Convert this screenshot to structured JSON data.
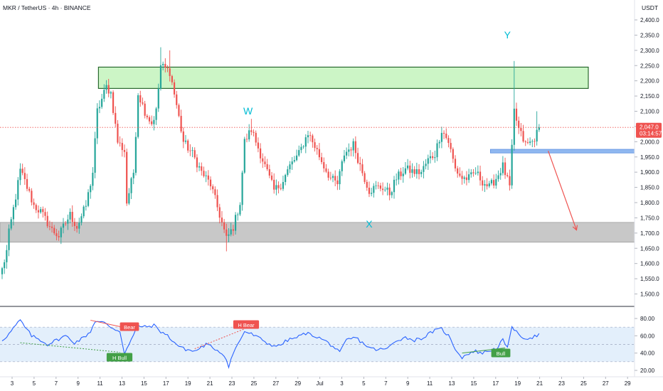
{
  "header": {
    "title": "MKR / TetherUS · 4h · BINANCE"
  },
  "price_axis": {
    "currency": "USDT",
    "ticks": [
      "2,400.0",
      "2,350.0",
      "2,300.0",
      "2,250.0",
      "2,200.0",
      "2,150.0",
      "2,100.0",
      "2,050.0",
      "2,000.0",
      "1,950.0",
      "1,900.0",
      "1,850.0",
      "1,800.0",
      "1,750.0",
      "1,700.0",
      "1,650.0",
      "1,600.0",
      "1,550.0",
      "1,500.0"
    ],
    "last_price": "2,047.0",
    "countdown": "03:14:57"
  },
  "rsi_axis": {
    "ticks": [
      "80.00",
      "60.00",
      "40.00",
      "20.00"
    ]
  },
  "time_axis": {
    "ticks": [
      "3",
      "5",
      "7",
      "9",
      "11",
      "13",
      "15",
      "17",
      "19",
      "21",
      "23",
      "25",
      "27",
      "29",
      "Jul",
      "3",
      "5",
      "7",
      "9",
      "11",
      "13",
      "15",
      "17",
      "19",
      "21",
      "23",
      "25",
      "27",
      "29"
    ]
  },
  "annotations": {
    "w": "W",
    "x": "X",
    "y": "Y"
  },
  "divergences": {
    "bear": "Bear",
    "h_bull": "H Bull",
    "h_bear": "H Bear",
    "bull": "Bull"
  },
  "colors": {
    "up": "#26a69a",
    "down": "#ef5350",
    "rsi_line": "#2962ff",
    "wave_label": "#00bcd4",
    "supply_zone": "#ccf5c6",
    "demand_zone": "#c8c8c8",
    "support_box": "#90b8f0",
    "projection": "#ef5350"
  },
  "chart_data": {
    "type": "candlestick",
    "symbol": "MKR / TetherUS",
    "timeframe": "4h",
    "exchange": "BINANCE",
    "y_unit": "USDT",
    "ylim": [
      1475,
      2425
    ],
    "last_price": 2047.0,
    "anchor_path": [
      [
        0,
        1580
      ],
      [
        2,
        1640
      ],
      [
        3,
        1700
      ],
      [
        6,
        1820
      ],
      [
        8,
        1905
      ],
      [
        10,
        1870
      ],
      [
        14,
        1790
      ],
      [
        17,
        1770
      ],
      [
        22,
        1710
      ],
      [
        25,
        1690
      ],
      [
        27,
        1720
      ],
      [
        30,
        1760
      ],
      [
        33,
        1720
      ],
      [
        37,
        1790
      ],
      [
        40,
        1900
      ],
      [
        42,
        2100
      ],
      [
        46,
        2180
      ],
      [
        48,
        2160
      ],
      [
        51,
        2000
      ],
      [
        54,
        1970
      ],
      [
        55,
        1800
      ],
      [
        58,
        1900
      ],
      [
        60,
        2160
      ],
      [
        63,
        2100
      ],
      [
        66,
        2060
      ],
      [
        68,
        2100
      ],
      [
        70,
        2250
      ],
      [
        74,
        2230
      ],
      [
        77,
        2120
      ],
      [
        80,
        2000
      ],
      [
        84,
        1960
      ],
      [
        88,
        1900
      ],
      [
        92,
        1860
      ],
      [
        96,
        1760
      ],
      [
        99,
        1680
      ],
      [
        102,
        1720
      ],
      [
        105,
        1800
      ],
      [
        107,
        2000
      ],
      [
        110,
        2040
      ],
      [
        114,
        1960
      ],
      [
        117,
        1900
      ],
      [
        120,
        1840
      ],
      [
        123,
        1860
      ],
      [
        127,
        1920
      ],
      [
        131,
        1960
      ],
      [
        135,
        2030
      ],
      [
        139,
        1970
      ],
      [
        142,
        1920
      ],
      [
        145,
        1880
      ],
      [
        148,
        1860
      ],
      [
        151,
        1960
      ],
      [
        155,
        1990
      ],
      [
        159,
        1900
      ],
      [
        162,
        1840
      ],
      [
        165,
        1850
      ],
      [
        168,
        1850
      ],
      [
        171,
        1830
      ],
      [
        174,
        1880
      ],
      [
        178,
        1910
      ],
      [
        182,
        1900
      ],
      [
        185,
        1900
      ],
      [
        188,
        1940
      ],
      [
        191,
        1960
      ],
      [
        194,
        2040
      ],
      [
        197,
        2000
      ],
      [
        200,
        1910
      ],
      [
        203,
        1880
      ],
      [
        206,
        1880
      ],
      [
        209,
        1900
      ],
      [
        212,
        1870
      ],
      [
        215,
        1850
      ],
      [
        218,
        1880
      ],
      [
        221,
        1920
      ],
      [
        224,
        1850
      ],
      [
        226,
        2100
      ],
      [
        228,
        2040
      ],
      [
        231,
        1990
      ],
      [
        234,
        2000
      ],
      [
        237,
        2040
      ]
    ],
    "zones": [
      {
        "name": "supply",
        "from": 2175,
        "to": 2245
      },
      {
        "name": "demand",
        "from": 1670,
        "to": 1735
      },
      {
        "name": "support",
        "from": 1963,
        "to": 1975
      }
    ],
    "projection": {
      "from": 1970,
      "to": 1710
    },
    "wave_points": [
      {
        "label": "W",
        "price": 2080
      },
      {
        "label": "X",
        "price": 1770
      },
      {
        "label": "Y",
        "price": 2330
      }
    ],
    "rsi": {
      "range": [
        10,
        90
      ],
      "band": [
        30,
        70
      ],
      "midline": 50,
      "anchor_path": [
        [
          0,
          55
        ],
        [
          3,
          62
        ],
        [
          6,
          72
        ],
        [
          8,
          78
        ],
        [
          10,
          70
        ],
        [
          13,
          60
        ],
        [
          17,
          55
        ],
        [
          20,
          50
        ],
        [
          24,
          55
        ],
        [
          28,
          60
        ],
        [
          32,
          52
        ],
        [
          36,
          58
        ],
        [
          39,
          65
        ],
        [
          41,
          77
        ],
        [
          45,
          75
        ],
        [
          48,
          70
        ],
        [
          52,
          65
        ],
        [
          54,
          40
        ],
        [
          57,
          55
        ],
        [
          60,
          72
        ],
        [
          63,
          70
        ],
        [
          67,
          72
        ],
        [
          70,
          65
        ],
        [
          73,
          60
        ],
        [
          77,
          50
        ],
        [
          80,
          45
        ],
        [
          85,
          42
        ],
        [
          90,
          50
        ],
        [
          94,
          45
        ],
        [
          98,
          38
        ],
        [
          100,
          25
        ],
        [
          102,
          40
        ],
        [
          105,
          55
        ],
        [
          107,
          65
        ],
        [
          110,
          62
        ],
        [
          115,
          55
        ],
        [
          118,
          50
        ],
        [
          122,
          48
        ],
        [
          126,
          55
        ],
        [
          130,
          58
        ],
        [
          134,
          63
        ],
        [
          138,
          60
        ],
        [
          142,
          55
        ],
        [
          146,
          48
        ],
        [
          149,
          40
        ],
        [
          152,
          55
        ],
        [
          156,
          58
        ],
        [
          160,
          50
        ],
        [
          163,
          45
        ],
        [
          166,
          44
        ],
        [
          170,
          45
        ],
        [
          174,
          55
        ],
        [
          178,
          58
        ],
        [
          182,
          55
        ],
        [
          186,
          58
        ],
        [
          190,
          65
        ],
        [
          194,
          68
        ],
        [
          197,
          60
        ],
        [
          200,
          45
        ],
        [
          203,
          35
        ],
        [
          206,
          40
        ],
        [
          209,
          42
        ],
        [
          212,
          40
        ],
        [
          215,
          43
        ],
        [
          218,
          45
        ],
        [
          221,
          55
        ],
        [
          223,
          45
        ],
        [
          225,
          72
        ],
        [
          228,
          60
        ],
        [
          232,
          57
        ],
        [
          236,
          60
        ],
        [
          237,
          62
        ]
      ]
    }
  }
}
